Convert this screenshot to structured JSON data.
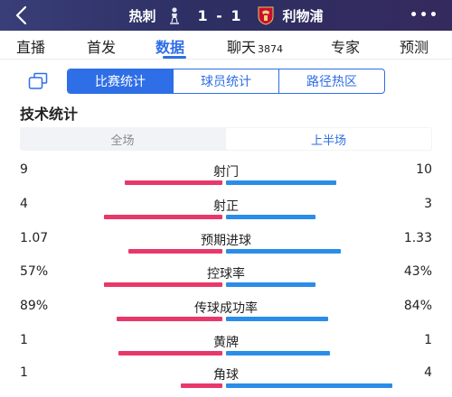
{
  "header": {
    "home_team": "热刺",
    "away_team": "利物浦",
    "score": "1 - 1",
    "back_icon": "chevron-left-icon",
    "more_icon": "more-dots-icon",
    "more_label": "•••"
  },
  "nav": {
    "tabs": [
      {
        "label": "直播",
        "count": "",
        "active": false
      },
      {
        "label": "首发",
        "count": "",
        "active": false
      },
      {
        "label": "数据",
        "count": "",
        "active": true
      },
      {
        "label": "聊天",
        "count": "3874",
        "active": false
      },
      {
        "label": "专家",
        "count": "",
        "active": false
      },
      {
        "label": "预测",
        "count": "",
        "active": false
      }
    ]
  },
  "subtabs": [
    "比赛统计",
    "球员统计",
    "路径热区"
  ],
  "section_title": "技术统计",
  "period": [
    "全场",
    "上半场"
  ],
  "colors": {
    "home": "#e8386a",
    "away": "#2a8de8",
    "accent": "#2e6ee6"
  },
  "stats": [
    {
      "name": "射门",
      "home": "9",
      "away": "10",
      "home_share": 0.47,
      "away_share": 0.53
    },
    {
      "name": "射正",
      "home": "4",
      "away": "3",
      "home_share": 0.57,
      "away_share": 0.43
    },
    {
      "name": "预期进球",
      "home": "1.07",
      "away": "1.33",
      "home_share": 0.45,
      "away_share": 0.55
    },
    {
      "name": "控球率",
      "home": "57%",
      "away": "43%",
      "home_share": 0.57,
      "away_share": 0.43
    },
    {
      "name": "传球成功率",
      "home": "89%",
      "away": "84%",
      "home_share": 0.51,
      "away_share": 0.49
    },
    {
      "name": "黄牌",
      "home": "1",
      "away": "1",
      "home_share": 0.5,
      "away_share": 0.5
    },
    {
      "name": "角球",
      "home": "1",
      "away": "4",
      "home_share": 0.2,
      "away_share": 0.8
    }
  ]
}
